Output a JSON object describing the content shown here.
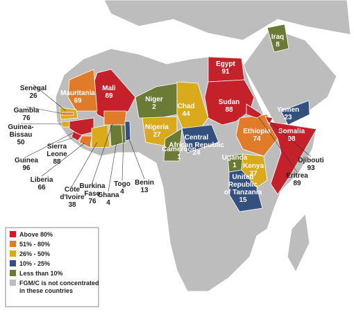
{
  "countries": [
    {
      "name": "Egypt",
      "value": 91,
      "group": 0
    },
    {
      "name": "Sudan",
      "value": 88,
      "group": 0
    },
    {
      "name": "Mali",
      "value": 89,
      "group": 0
    },
    {
      "name": "Mauritania",
      "value": 69,
      "group": 1
    },
    {
      "name": "Niger",
      "value": 2,
      "group": 4
    },
    {
      "name": "Chad",
      "value": 44,
      "group": 2
    },
    {
      "name": "Nigeria",
      "value": 27,
      "group": 2
    },
    {
      "name": "Cameroon",
      "value": 1,
      "group": 4
    },
    {
      "name": "Central African Republic",
      "value": 24,
      "group": 3
    },
    {
      "name": "Ethiopia",
      "value": 74,
      "group": 1
    },
    {
      "name": "Somalia",
      "value": 98,
      "group": 0
    },
    {
      "name": "Yemen",
      "value": 23,
      "group": 3
    },
    {
      "name": "Iraq",
      "value": 8,
      "group": 4
    },
    {
      "name": "Uganda",
      "value": 1,
      "group": 4
    },
    {
      "name": "Kenya",
      "value": 27,
      "group": 2
    },
    {
      "name": "United Republic of Tanzania",
      "value": 15,
      "group": 3
    },
    {
      "name": "Djibouti",
      "value": 93,
      "group": 0
    },
    {
      "name": "Eritrea",
      "value": 89,
      "group": 0
    },
    {
      "name": "Senegal",
      "value": 26,
      "group": 2
    },
    {
      "name": "Gambia",
      "value": 76,
      "group": 1
    },
    {
      "name": "Guinea-Bissau",
      "value": 50,
      "group": 2
    },
    {
      "name": "Guinea",
      "value": 96,
      "group": 0
    },
    {
      "name": "Sierra Leone",
      "value": 88,
      "group": 0
    },
    {
      "name": "Liberia",
      "value": 66,
      "group": 1
    },
    {
      "name": "Côte d'Ivoire",
      "value": 38,
      "group": 2
    },
    {
      "name": "Burkina Faso",
      "value": 76,
      "group": 1
    },
    {
      "name": "Ghana",
      "value": 4,
      "group": 4
    },
    {
      "name": "Togo",
      "value": 4,
      "group": 4
    },
    {
      "name": "Benin",
      "value": 13,
      "group": 3
    }
  ],
  "legend": [
    {
      "label": "Above 80%",
      "color": "#c4212b"
    },
    {
      "label": "51% - 80%",
      "color": "#e07b2a"
    },
    {
      "label": "26% - 50%",
      "color": "#d9aa1c"
    },
    {
      "label": "10% - 25%",
      "color": "#34507f"
    },
    {
      "label": "Less than 10%",
      "color": "#6b7a35"
    },
    {
      "label": "FGM/C is not concentrated in these countries",
      "color": "#bdbdbd"
    }
  ]
}
